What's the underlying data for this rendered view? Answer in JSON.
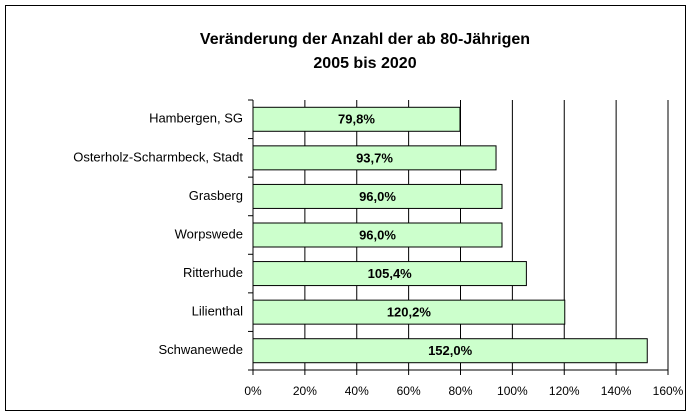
{
  "chart_data": {
    "type": "bar",
    "orientation": "horizontal",
    "title": "Veränderung der Anzahl der ab 80-Jährigen",
    "subtitle": "2005 bis 2020",
    "categories": [
      "Hambergen, SG",
      "Osterholz-Scharmbeck, Stadt",
      "Grasberg",
      "Worpswede",
      "Ritterhude",
      "Lilienthal",
      "Schwanewede"
    ],
    "values": [
      79.8,
      93.7,
      96.0,
      96.0,
      105.4,
      120.2,
      152.0
    ],
    "value_labels": [
      "79,8%",
      "93,7%",
      "96,0%",
      "96,0%",
      "105,4%",
      "120,2%",
      "152,0%"
    ],
    "color": "#ccffcc",
    "xlim": [
      0,
      160
    ],
    "xticks": [
      {
        "value": 0,
        "label": "0%"
      },
      {
        "value": 20,
        "label": "20%"
      },
      {
        "value": 40,
        "label": "40%"
      },
      {
        "value": 60,
        "label": "60%"
      },
      {
        "value": 80,
        "label": "80%"
      },
      {
        "value": 100,
        "label": "100%"
      },
      {
        "value": 120,
        "label": "120%"
      },
      {
        "value": 140,
        "label": "140%"
      },
      {
        "value": 160,
        "label": "160%"
      }
    ],
    "grid": true
  }
}
